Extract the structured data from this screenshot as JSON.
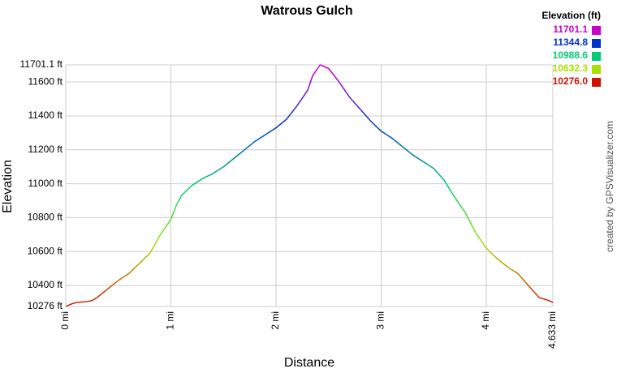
{
  "chart_data": {
    "type": "line",
    "title": "Watrous Gulch",
    "x_label": "Distance",
    "y_label": "Elevation",
    "credit": "created by GPSVisualizer.com",
    "xlim": [
      0,
      4.633
    ],
    "xticks": [
      {
        "value": 0,
        "label": "0 mi"
      },
      {
        "value": 1,
        "label": "1 mi"
      },
      {
        "value": 2,
        "label": "2 mi"
      },
      {
        "value": 3,
        "label": "3 mi"
      },
      {
        "value": 4,
        "label": "4 mi"
      },
      {
        "value": 4.633,
        "label": "4.633 mi"
      }
    ],
    "ylim": [
      10276,
      11701.1
    ],
    "yticks": [
      {
        "value": 10276,
        "label": "10276 ft"
      },
      {
        "value": 10400,
        "label": "10400 ft"
      },
      {
        "value": 10600,
        "label": "10600 ft"
      },
      {
        "value": 10800,
        "label": "10800 ft"
      },
      {
        "value": 11000,
        "label": "11000 ft"
      },
      {
        "value": 11200,
        "label": "11200 ft"
      },
      {
        "value": 11400,
        "label": "11400 ft"
      },
      {
        "value": 11600,
        "label": "11600 ft"
      },
      {
        "value": 11701.1,
        "label": "11701.1 ft"
      }
    ],
    "grid": true,
    "legend": {
      "title": "Elevation (ft)",
      "items": [
        {
          "value": 11701.1,
          "color": "#cc00cc"
        },
        {
          "value": 11344.8,
          "color": "#0033cc"
        },
        {
          "value": 10988.6,
          "color": "#00cc77"
        },
        {
          "value": 10632.3,
          "color": "#aadd00"
        },
        {
          "value": 10276,
          "label": "10276.0",
          "color": "#cc1100"
        }
      ]
    },
    "x": [
      0,
      0.05,
      0.1,
      0.2,
      0.25,
      0.3,
      0.4,
      0.5,
      0.6,
      0.7,
      0.8,
      0.9,
      1.0,
      1.05,
      1.1,
      1.2,
      1.3,
      1.4,
      1.5,
      1.6,
      1.7,
      1.8,
      1.9,
      2.0,
      2.1,
      2.2,
      2.3,
      2.35,
      2.42,
      2.5,
      2.6,
      2.7,
      2.8,
      2.9,
      3.0,
      3.1,
      3.2,
      3.3,
      3.4,
      3.5,
      3.6,
      3.7,
      3.8,
      3.9,
      4.0,
      4.1,
      4.2,
      4.3,
      4.4,
      4.5,
      4.6,
      4.633
    ],
    "values": [
      10276,
      10290,
      10300,
      10305,
      10311,
      10330,
      10380,
      10430,
      10470,
      10530,
      10590,
      10700,
      10790,
      10870,
      10930,
      10990,
      11030,
      11060,
      11100,
      11150,
      11200,
      11250,
      11290,
      11330,
      11380,
      11460,
      11550,
      11640,
      11701.1,
      11680,
      11600,
      11510,
      11440,
      11370,
      11310,
      11270,
      11220,
      11170,
      11130,
      11090,
      11020,
      10920,
      10830,
      10710,
      10620,
      10560,
      10510,
      10470,
      10400,
      10330,
      10310,
      10300
    ]
  }
}
